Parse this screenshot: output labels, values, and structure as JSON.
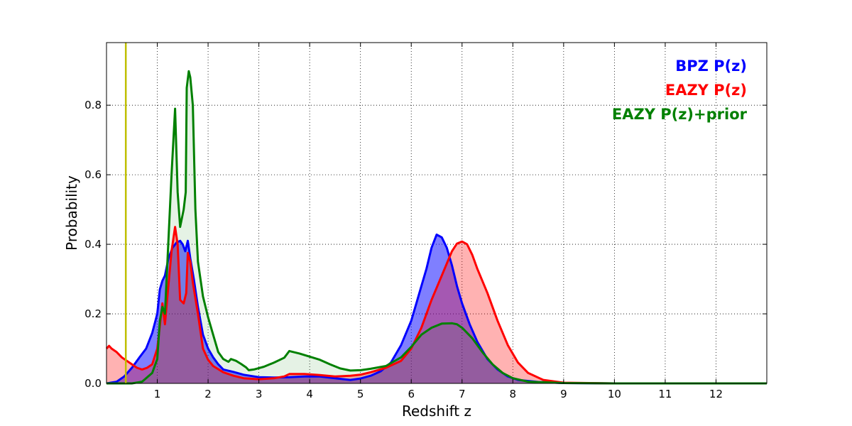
{
  "chart_data": {
    "type": "area",
    "title": "",
    "xlabel": "Redshift z",
    "ylabel": "Probability",
    "xlim": [
      0,
      13
    ],
    "ylim": [
      0,
      0.98
    ],
    "x_ticks": [
      1,
      2,
      3,
      4,
      5,
      6,
      7,
      8,
      9,
      10,
      11,
      12
    ],
    "x_tick_labels": [
      "1",
      "2",
      "3",
      "4",
      "5",
      "6",
      "7",
      "8",
      "9",
      "10",
      "11",
      "12"
    ],
    "y_ticks": [
      0.0,
      0.2,
      0.4,
      0.6,
      0.8
    ],
    "y_tick_labels": [
      "0.0",
      "0.2",
      "0.4",
      "0.6",
      "0.8"
    ],
    "grid": true,
    "legend_placement": "top-right",
    "reference_line": {
      "x": 0.38,
      "color": "#bfbf00"
    },
    "series": [
      {
        "name": "BPZ P(z)",
        "color": "#0000ff",
        "fill": "#0000ff",
        "points": [
          [
            0,
            0
          ],
          [
            0.2,
            0.005
          ],
          [
            0.35,
            0.02
          ],
          [
            0.5,
            0.045
          ],
          [
            0.65,
            0.075
          ],
          [
            0.78,
            0.1
          ],
          [
            0.9,
            0.145
          ],
          [
            1.0,
            0.2
          ],
          [
            1.05,
            0.27
          ],
          [
            1.1,
            0.295
          ],
          [
            1.15,
            0.31
          ],
          [
            1.22,
            0.36
          ],
          [
            1.3,
            0.39
          ],
          [
            1.38,
            0.405
          ],
          [
            1.45,
            0.41
          ],
          [
            1.5,
            0.4
          ],
          [
            1.55,
            0.38
          ],
          [
            1.6,
            0.41
          ],
          [
            1.65,
            0.36
          ],
          [
            1.72,
            0.3
          ],
          [
            1.8,
            0.22
          ],
          [
            1.9,
            0.14
          ],
          [
            2.0,
            0.1
          ],
          [
            2.1,
            0.075
          ],
          [
            2.2,
            0.055
          ],
          [
            2.3,
            0.04
          ],
          [
            2.5,
            0.033
          ],
          [
            2.7,
            0.025
          ],
          [
            3.0,
            0.018
          ],
          [
            3.3,
            0.017
          ],
          [
            3.6,
            0.018
          ],
          [
            3.9,
            0.02
          ],
          [
            4.2,
            0.02
          ],
          [
            4.5,
            0.015
          ],
          [
            4.8,
            0.01
          ],
          [
            5.0,
            0.014
          ],
          [
            5.2,
            0.022
          ],
          [
            5.4,
            0.035
          ],
          [
            5.6,
            0.06
          ],
          [
            5.8,
            0.11
          ],
          [
            6.0,
            0.18
          ],
          [
            6.1,
            0.23
          ],
          [
            6.2,
            0.28
          ],
          [
            6.3,
            0.33
          ],
          [
            6.4,
            0.39
          ],
          [
            6.5,
            0.428
          ],
          [
            6.6,
            0.42
          ],
          [
            6.7,
            0.39
          ],
          [
            6.8,
            0.34
          ],
          [
            6.9,
            0.28
          ],
          [
            7.0,
            0.23
          ],
          [
            7.15,
            0.17
          ],
          [
            7.3,
            0.12
          ],
          [
            7.5,
            0.07
          ],
          [
            7.7,
            0.04
          ],
          [
            7.9,
            0.02
          ],
          [
            8.1,
            0.01
          ],
          [
            8.5,
            0.004
          ],
          [
            9,
            0.001
          ],
          [
            10,
            0
          ],
          [
            13,
            0
          ]
        ]
      },
      {
        "name": "EAZY P(z)",
        "color": "#ff0000",
        "fill": "#ff0000",
        "points": [
          [
            0,
            0.1
          ],
          [
            0.05,
            0.108
          ],
          [
            0.1,
            0.1
          ],
          [
            0.2,
            0.09
          ],
          [
            0.3,
            0.075
          ],
          [
            0.4,
            0.065
          ],
          [
            0.5,
            0.055
          ],
          [
            0.6,
            0.045
          ],
          [
            0.7,
            0.04
          ],
          [
            0.8,
            0.045
          ],
          [
            0.9,
            0.055
          ],
          [
            1.0,
            0.1
          ],
          [
            1.1,
            0.23
          ],
          [
            1.15,
            0.17
          ],
          [
            1.2,
            0.25
          ],
          [
            1.28,
            0.38
          ],
          [
            1.35,
            0.45
          ],
          [
            1.4,
            0.4
          ],
          [
            1.45,
            0.24
          ],
          [
            1.52,
            0.23
          ],
          [
            1.57,
            0.26
          ],
          [
            1.6,
            0.375
          ],
          [
            1.65,
            0.35
          ],
          [
            1.7,
            0.29
          ],
          [
            1.8,
            0.2
          ],
          [
            1.9,
            0.1
          ],
          [
            2.0,
            0.068
          ],
          [
            2.1,
            0.05
          ],
          [
            2.3,
            0.032
          ],
          [
            2.5,
            0.022
          ],
          [
            2.7,
            0.015
          ],
          [
            3.0,
            0.012
          ],
          [
            3.3,
            0.015
          ],
          [
            3.5,
            0.02
          ],
          [
            3.6,
            0.027
          ],
          [
            3.9,
            0.027
          ],
          [
            4.2,
            0.024
          ],
          [
            4.5,
            0.02
          ],
          [
            4.8,
            0.022
          ],
          [
            5.0,
            0.025
          ],
          [
            5.2,
            0.032
          ],
          [
            5.5,
            0.045
          ],
          [
            5.8,
            0.065
          ],
          [
            6.0,
            0.1
          ],
          [
            6.2,
            0.16
          ],
          [
            6.4,
            0.24
          ],
          [
            6.6,
            0.31
          ],
          [
            6.8,
            0.38
          ],
          [
            6.9,
            0.402
          ],
          [
            7.0,
            0.408
          ],
          [
            7.1,
            0.4
          ],
          [
            7.2,
            0.37
          ],
          [
            7.3,
            0.33
          ],
          [
            7.5,
            0.26
          ],
          [
            7.7,
            0.18
          ],
          [
            7.9,
            0.11
          ],
          [
            8.1,
            0.06
          ],
          [
            8.3,
            0.03
          ],
          [
            8.6,
            0.01
          ],
          [
            9,
            0.002
          ],
          [
            10,
            0
          ],
          [
            13,
            0
          ]
        ]
      },
      {
        "name": "EAZY P(z)+prior",
        "color": "#008000",
        "fill": "#008000",
        "points": [
          [
            0,
            0
          ],
          [
            0.5,
            0
          ],
          [
            0.7,
            0.005
          ],
          [
            0.9,
            0.03
          ],
          [
            1.0,
            0.07
          ],
          [
            1.05,
            0.18
          ],
          [
            1.1,
            0.22
          ],
          [
            1.15,
            0.2
          ],
          [
            1.2,
            0.35
          ],
          [
            1.28,
            0.6
          ],
          [
            1.35,
            0.79
          ],
          [
            1.4,
            0.55
          ],
          [
            1.45,
            0.45
          ],
          [
            1.52,
            0.5
          ],
          [
            1.56,
            0.55
          ],
          [
            1.58,
            0.85
          ],
          [
            1.62,
            0.898
          ],
          [
            1.65,
            0.88
          ],
          [
            1.7,
            0.8
          ],
          [
            1.75,
            0.5
          ],
          [
            1.8,
            0.35
          ],
          [
            1.9,
            0.25
          ],
          [
            2.0,
            0.19
          ],
          [
            2.1,
            0.14
          ],
          [
            2.2,
            0.09
          ],
          [
            2.3,
            0.07
          ],
          [
            2.4,
            0.062
          ],
          [
            2.45,
            0.07
          ],
          [
            2.55,
            0.065
          ],
          [
            2.65,
            0.056
          ],
          [
            2.75,
            0.046
          ],
          [
            2.8,
            0.038
          ],
          [
            2.9,
            0.04
          ],
          [
            3.1,
            0.048
          ],
          [
            3.3,
            0.06
          ],
          [
            3.5,
            0.074
          ],
          [
            3.6,
            0.093
          ],
          [
            3.8,
            0.086
          ],
          [
            4.0,
            0.077
          ],
          [
            4.2,
            0.068
          ],
          [
            4.4,
            0.055
          ],
          [
            4.6,
            0.043
          ],
          [
            4.8,
            0.037
          ],
          [
            5.0,
            0.038
          ],
          [
            5.2,
            0.042
          ],
          [
            5.5,
            0.05
          ],
          [
            5.8,
            0.075
          ],
          [
            6.0,
            0.105
          ],
          [
            6.2,
            0.14
          ],
          [
            6.4,
            0.16
          ],
          [
            6.6,
            0.172
          ],
          [
            6.8,
            0.173
          ],
          [
            6.9,
            0.17
          ],
          [
            7.0,
            0.16
          ],
          [
            7.2,
            0.13
          ],
          [
            7.4,
            0.09
          ],
          [
            7.6,
            0.055
          ],
          [
            7.8,
            0.03
          ],
          [
            8.0,
            0.015
          ],
          [
            8.3,
            0.005
          ],
          [
            9,
            0.001
          ],
          [
            10,
            0
          ],
          [
            13,
            0
          ]
        ]
      }
    ]
  }
}
